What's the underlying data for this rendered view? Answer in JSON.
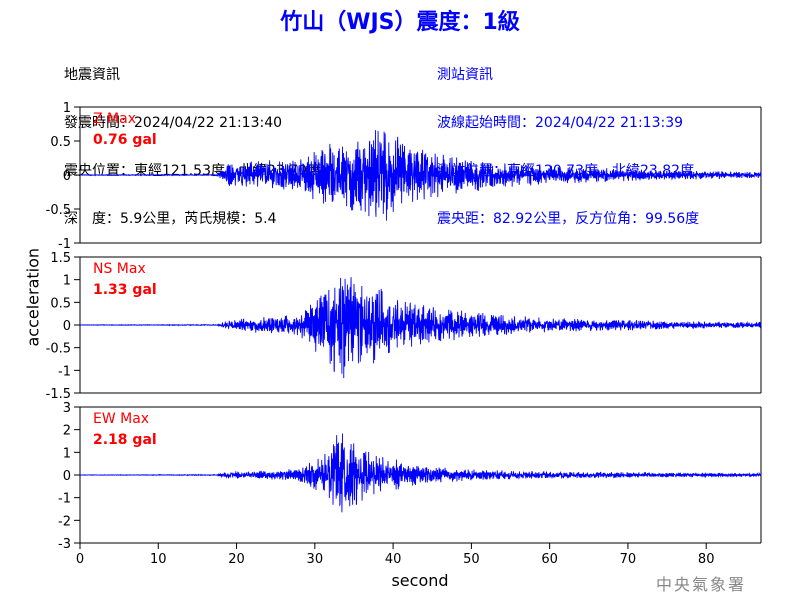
{
  "title": "竹山（WJS）震度：1級",
  "event_info": {
    "heading": "地震資訊",
    "origin_time": "發震時間：2024/04/22 21:13:40",
    "epicenter": "震央位置：東經121.53度，北緯23.70度",
    "depth_mag": "深　度：5.9公里，芮氏規模：5.4"
  },
  "station_info": {
    "heading": "測站資訊",
    "wave_start": "波線起始時間：2024/04/22 21:13:39",
    "location": "測站位置：東經120.73度，北緯23.82度",
    "distance": "震央距：82.92公里，反方位角：99.56度"
  },
  "watermark": "中央氣象署",
  "colors": {
    "title": "#0000ff",
    "trace": "#0000ff",
    "max_label": "#ff0000",
    "station_info": "#0000ff"
  },
  "chart_data": [
    {
      "type": "line",
      "component": "Z",
      "max_label": "Z Max",
      "max_value": "0.76 gal",
      "peak": 0.76,
      "ylim": [
        -1,
        1
      ],
      "yticks": [
        1,
        0.5,
        0,
        -0.5,
        -1
      ],
      "ytick_labels": [
        "1",
        "0.5",
        "0",
        "-0.5",
        "-1"
      ],
      "onset": 18,
      "envelope": [
        [
          0,
          0.005
        ],
        [
          17.5,
          0.008
        ],
        [
          18.5,
          0.16
        ],
        [
          21,
          0.2
        ],
        [
          24,
          0.22
        ],
        [
          28,
          0.24
        ],
        [
          31,
          0.45
        ],
        [
          34,
          0.55
        ],
        [
          37,
          0.62
        ],
        [
          39,
          0.76
        ],
        [
          42,
          0.45
        ],
        [
          46,
          0.32
        ],
        [
          50,
          0.25
        ],
        [
          55,
          0.18
        ],
        [
          60,
          0.14
        ],
        [
          65,
          0.12
        ],
        [
          70,
          0.09
        ],
        [
          78,
          0.07
        ],
        [
          87,
          0.05
        ]
      ]
    },
    {
      "type": "line",
      "component": "NS",
      "max_label": "NS Max",
      "max_value": "1.33 gal",
      "peak": 1.33,
      "ylim": [
        -1.5,
        1.5
      ],
      "yticks": [
        1.5,
        1,
        0.5,
        0,
        -0.5,
        -1,
        -1.5
      ],
      "ytick_labels": [
        "1.5",
        "1",
        "0.5",
        "0",
        "-0.5",
        "-1",
        "-1.5"
      ],
      "onset": 18,
      "envelope": [
        [
          0,
          0.005
        ],
        [
          17.5,
          0.01
        ],
        [
          18.5,
          0.1
        ],
        [
          23,
          0.18
        ],
        [
          28,
          0.25
        ],
        [
          31,
          0.8
        ],
        [
          34,
          1.33
        ],
        [
          36,
          1.1
        ],
        [
          38,
          0.9
        ],
        [
          41,
          0.6
        ],
        [
          45,
          0.4
        ],
        [
          50,
          0.3
        ],
        [
          55,
          0.22
        ],
        [
          60,
          0.16
        ],
        [
          70,
          0.12
        ],
        [
          80,
          0.08
        ],
        [
          87,
          0.07
        ]
      ]
    },
    {
      "type": "line",
      "component": "EW",
      "max_label": "EW Max",
      "max_value": "2.18 gal",
      "peak": 2.18,
      "ylim": [
        -3,
        3
      ],
      "yticks": [
        3,
        2,
        1,
        0,
        -1,
        -2,
        -3
      ],
      "ytick_labels": [
        "3",
        "2",
        "1",
        "0",
        "-1",
        "-2",
        "-3"
      ],
      "onset": 18,
      "envelope": [
        [
          0,
          0.01
        ],
        [
          17.5,
          0.02
        ],
        [
          18.5,
          0.15
        ],
        [
          23,
          0.2
        ],
        [
          28,
          0.3
        ],
        [
          31,
          0.9
        ],
        [
          33.5,
          2.18
        ],
        [
          36,
          1.4
        ],
        [
          39,
          0.9
        ],
        [
          42,
          0.5
        ],
        [
          46,
          0.35
        ],
        [
          50,
          0.28
        ],
        [
          55,
          0.2
        ],
        [
          60,
          0.17
        ],
        [
          70,
          0.13
        ],
        [
          80,
          0.1
        ],
        [
          87,
          0.08
        ]
      ]
    }
  ],
  "x_axis": {
    "label": "second",
    "xlim": [
      0,
      87
    ],
    "ticks": [
      0,
      10,
      20,
      30,
      40,
      50,
      60,
      70,
      80
    ],
    "tick_labels": [
      "0",
      "10",
      "20",
      "30",
      "40",
      "50",
      "60",
      "70",
      "80"
    ]
  },
  "y_axis_label": "acceleration"
}
